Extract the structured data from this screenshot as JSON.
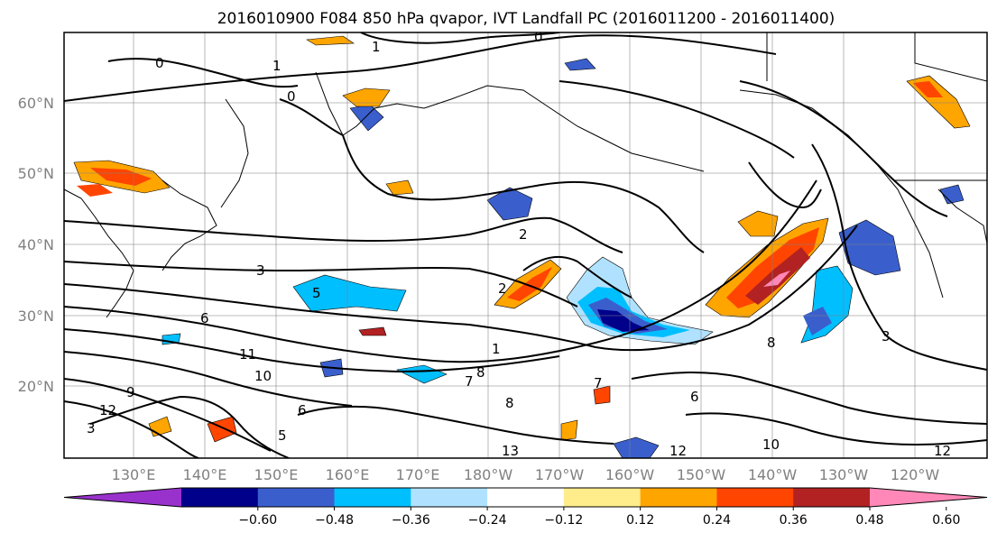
{
  "title": "2016010900 F084 850 hPa qvapor, IVT Landfall PC (2016011200 - 2016011400)",
  "map": {
    "lon_ticks": [
      "130°E",
      "140°E",
      "150°E",
      "160°E",
      "170°E",
      "180°W",
      "170°W",
      "160°W",
      "150°W",
      "140°W",
      "130°W",
      "120°W"
    ],
    "lat_ticks": [
      "60°N",
      "50°N",
      "40°N",
      "30°N",
      "20°N"
    ],
    "gridlines": true,
    "contour_labels": [
      "0",
      "1",
      "0",
      "0",
      "1",
      "2",
      "2",
      "3",
      "5",
      "6",
      "1",
      "8",
      "8",
      "3",
      "11",
      "10",
      "7",
      "6",
      "5",
      "8",
      "13",
      "12",
      "10",
      "12",
      "12",
      "9",
      "6",
      "7",
      "3"
    ]
  },
  "colorbar": {
    "ticks": [
      "−0.60",
      "−0.48",
      "−0.36",
      "−0.24",
      "−0.12",
      "0.12",
      "0.24",
      "0.36",
      "0.48",
      "0.60"
    ],
    "colors": [
      "#9932cc",
      "#00008b",
      "#3a5fcd",
      "#00bfff",
      "#b0e2ff",
      "#ffffff",
      "#ffec8b",
      "#ffa500",
      "#ff4500",
      "#b22222",
      "#ff88b8"
    ]
  }
}
